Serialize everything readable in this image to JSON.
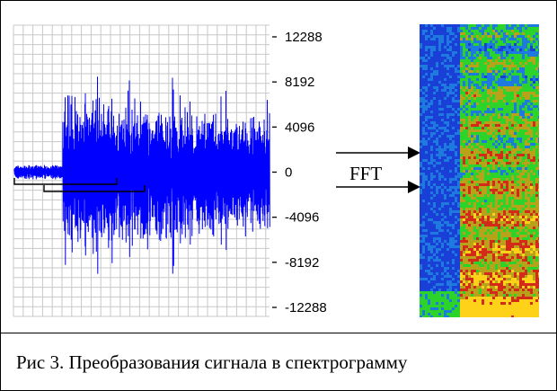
{
  "caption": "Рис 3. Преобразования сигнала в спектрограмму",
  "fft_label": "FFT",
  "colors": {
    "signal": "#0000ff",
    "grid": "#c8c8c8",
    "frame": "#000000",
    "spectrogram_low": "#1a3fd6",
    "spectrogram_mid": "#2bd32b",
    "spectrogram_high": "#d42a1a",
    "spectrogram_peak": "#ffd21a"
  },
  "chart_data": {
    "type": "line",
    "series": [
      {
        "values": []
      }
    ],
    "y_ticks": [
      "12288",
      "8192",
      "4096",
      "0",
      "-4096",
      "-8192",
      "-12288"
    ],
    "ylim": [
      -12288,
      12288
    ],
    "grid": true
  }
}
